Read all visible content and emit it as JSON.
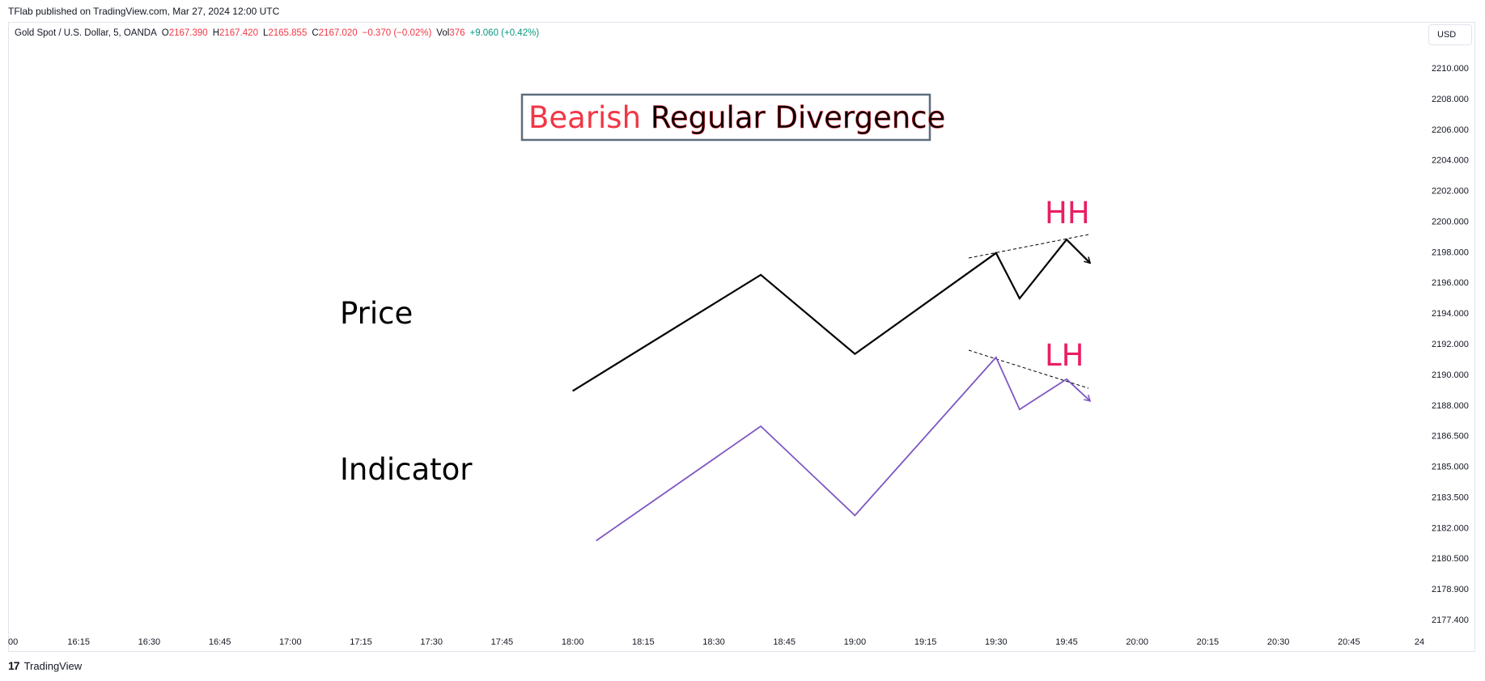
{
  "header": {
    "published": "TFlab published on TradingView.com, Mar 27, 2024 12:00 UTC"
  },
  "legend": {
    "symbol": "Gold Spot / U.S. Dollar, 5, OANDA",
    "o_label": "O",
    "o_value": "2167.390",
    "h_label": "H",
    "h_value": "2167.420",
    "l_label": "L",
    "l_value": "2165.855",
    "c_label": "C",
    "c_value": "2167.020",
    "change": "−0.370 (−0.02%)",
    "vol_label": "Vol",
    "vol_value": "376",
    "vol_change": "+9.060 (+0.42%)"
  },
  "currency": "USD",
  "footer": {
    "brand": "TradingView",
    "logo_glyph": "17"
  },
  "colors": {
    "bearish": "#f23645",
    "label_pink": "#e91e63",
    "price_line": "#000000",
    "indicator_line": "#7e57c2",
    "axis_text": "#131722"
  },
  "chart_data": {
    "type": "line",
    "x_ticks": [
      "00",
      "16:15",
      "16:30",
      "16:45",
      "17:00",
      "17:15",
      "17:30",
      "17:45",
      "18:00",
      "18:15",
      "18:30",
      "18:45",
      "19:00",
      "19:15",
      "19:30",
      "19:45",
      "20:00",
      "20:15",
      "20:30",
      "20:45",
      "24"
    ],
    "y_ticks": [
      "2210.000",
      "2208.000",
      "2206.000",
      "2204.000",
      "2202.000",
      "2200.000",
      "2198.000",
      "2196.000",
      "2194.000",
      "2192.000",
      "2190.000",
      "2188.000",
      "2186.500",
      "2185.000",
      "2183.500",
      "2182.000",
      "2180.500",
      "2178.900",
      "2177.400"
    ],
    "series": [
      {
        "x": [
          "18:00",
          "18:40",
          "19:00",
          "19:30",
          "19:35",
          "19:45",
          "19:50"
        ],
        "y": [
          2190.8,
          2197.7,
          2193.0,
          2199.0,
          2196.3,
          2199.8,
          2198.4
        ]
      },
      {
        "x": [
          "18:05",
          "18:40",
          "19:00",
          "19:30",
          "19:35",
          "19:45",
          "19:50"
        ],
        "y": [
          2181.9,
          2188.7,
          2183.4,
          2192.8,
          2189.7,
          2191.5,
          2190.2
        ]
      }
    ],
    "annotations": {
      "title_word1": "Bearish",
      "title_word2": "Regular Divergence",
      "price_label": "Price",
      "indicator_label": "Indicator",
      "hh": "HH",
      "lh": "LH"
    }
  }
}
